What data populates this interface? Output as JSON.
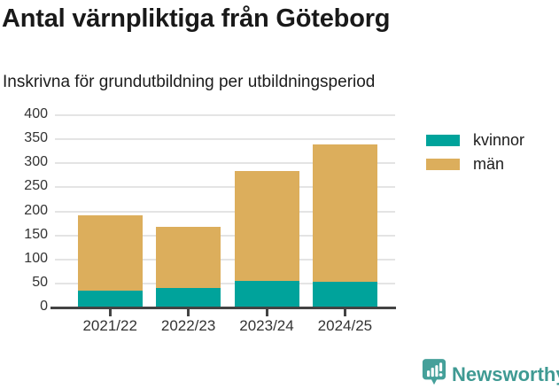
{
  "chart_data": {
    "type": "bar",
    "stacked": true,
    "title": "Antal värnpliktiga från Göteborg",
    "subtitle": "Inskrivna för grundutbildning per utbildningsperiod",
    "categories": [
      "2021/22",
      "2022/23",
      "2023/24",
      "2024/25"
    ],
    "series": [
      {
        "name": "kvinnor",
        "color": "#00A39B",
        "values": [
          35,
          41,
          56,
          53
        ]
      },
      {
        "name": "män",
        "color": "#DCAE5C",
        "values": [
          157,
          127,
          228,
          286
        ]
      }
    ],
    "totals": [
      192,
      168,
      284,
      339
    ],
    "xlabel": "",
    "ylabel": "",
    "ylim": [
      0,
      400
    ],
    "y_ticks": [
      0,
      50,
      100,
      150,
      200,
      250,
      300,
      350,
      400
    ],
    "grid": "horizontal",
    "legend_position": "right",
    "colors": {
      "grid": "#E4E4E4",
      "axis": "#434343",
      "tick_label": "#333333"
    }
  },
  "footer": {
    "brand": "Newsworthy",
    "brand_color": "#3F9A93",
    "logo_color": "#45A09A"
  }
}
